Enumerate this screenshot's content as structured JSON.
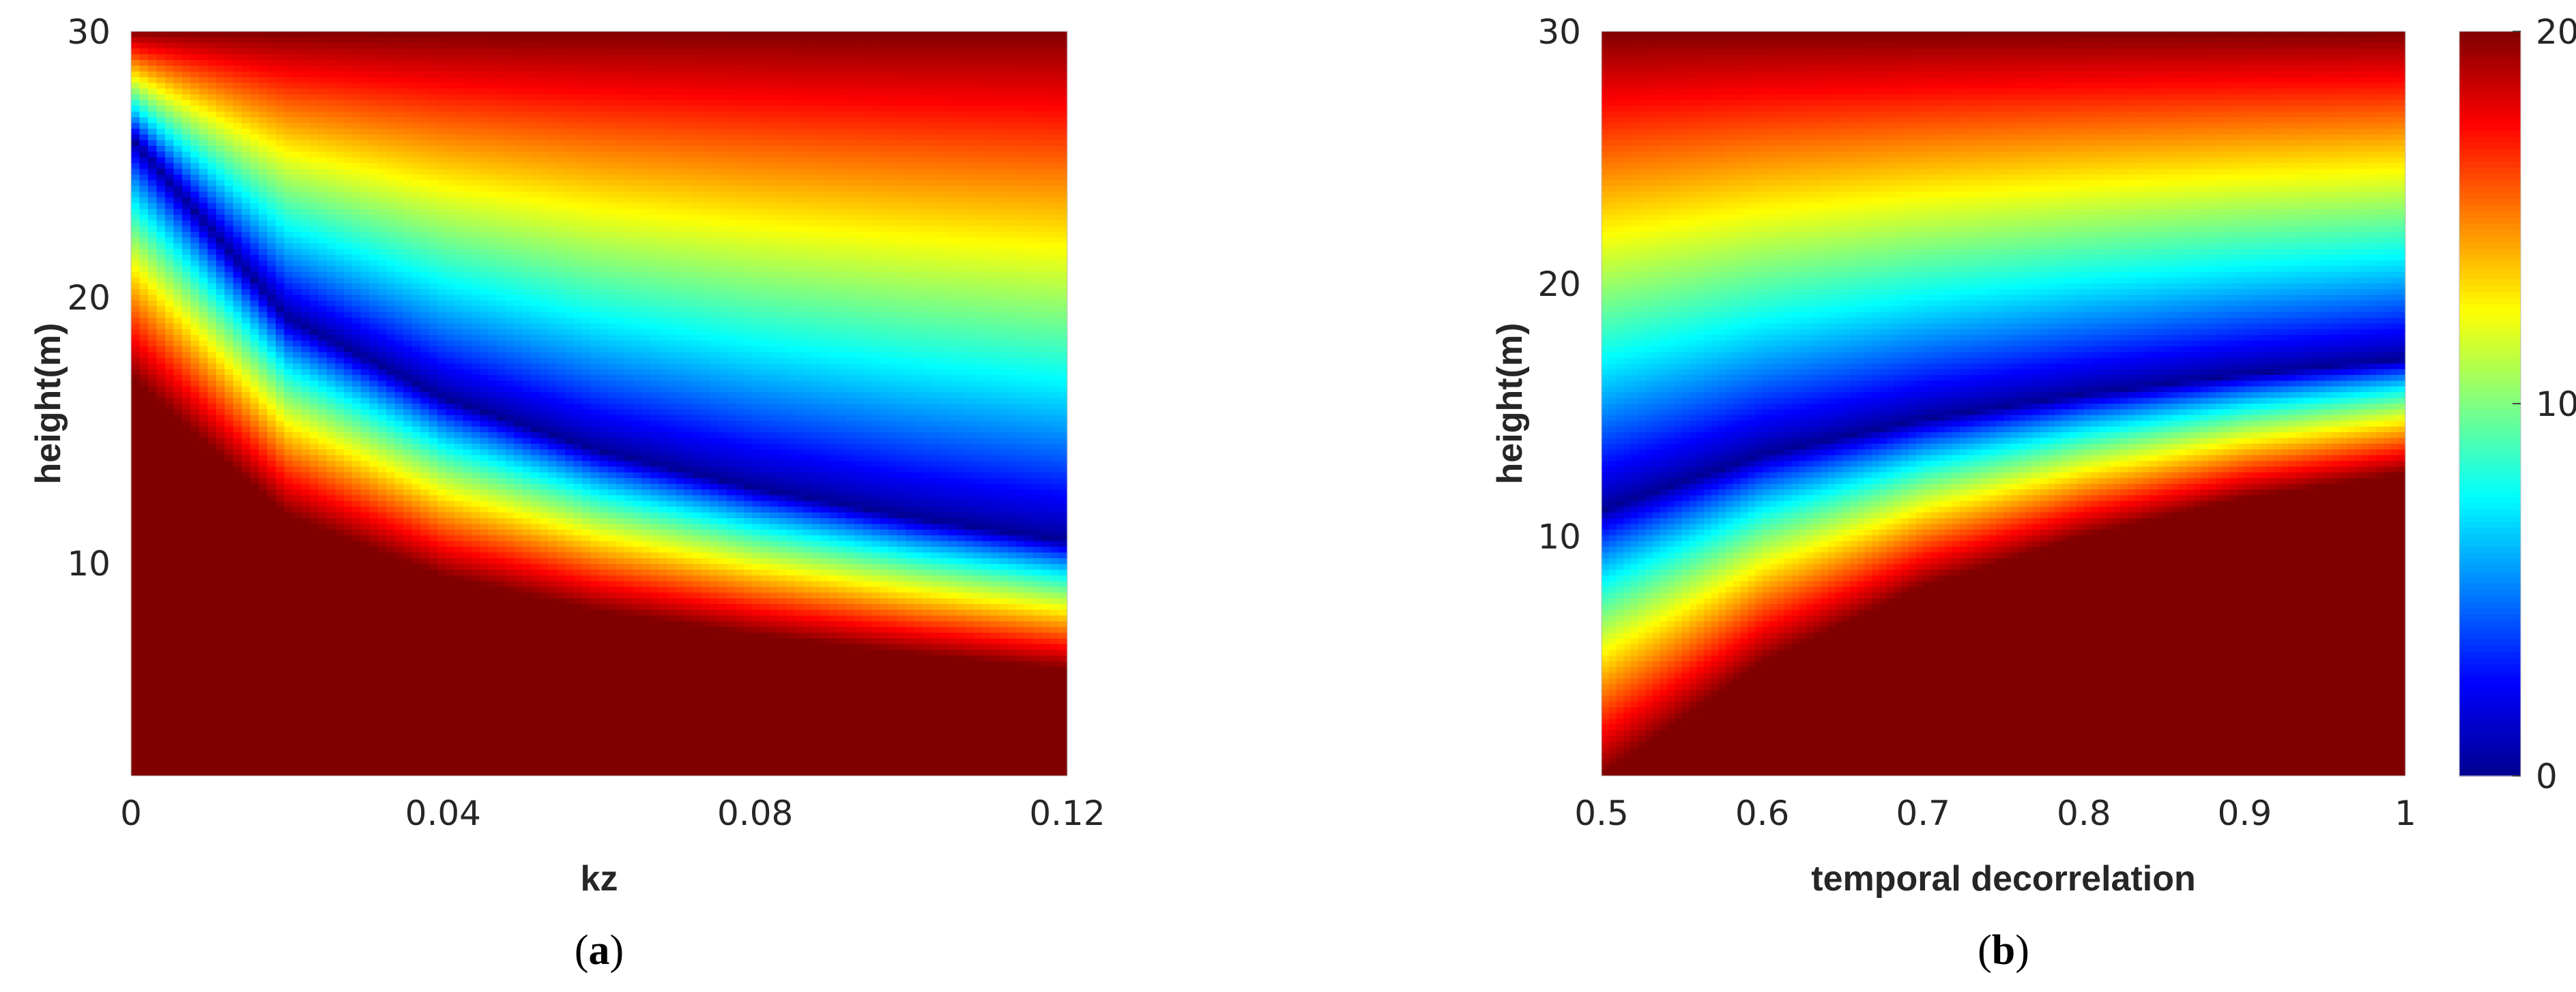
{
  "colormap": [
    "#00008f",
    "#0000ff",
    "#0080ff",
    "#00ffff",
    "#80ff80",
    "#ffff00",
    "#ff8000",
    "#ff0000",
    "#800000"
  ],
  "chart_data": [
    {
      "type": "heatmap",
      "panel": "a",
      "title": "",
      "xlabel": "kz",
      "ylabel": "height(m)",
      "xlim": [
        0,
        0.12
      ],
      "ylim": [
        2,
        30
      ],
      "xticks": [
        0,
        0.04,
        0.08,
        0.12
      ],
      "xtick_labels": [
        "0",
        "0.04",
        "0.08",
        "0.12"
      ],
      "yticks": [
        10,
        20,
        30
      ],
      "ytick_labels": [
        "10",
        "20",
        "30"
      ],
      "clim": [
        0,
        20
      ],
      "trough_height_vs_x": {
        "x": [
          0,
          0.02,
          0.04,
          0.06,
          0.08,
          0.1,
          0.12
        ],
        "y": [
          26,
          19.2,
          16.2,
          14.2,
          12.8,
          11.7,
          10.8
        ]
      },
      "saturation_edge_vs_x": {
        "x": [
          0,
          0.02,
          0.04,
          0.06,
          0.08,
          0.1,
          0.12
        ],
        "y": [
          17,
          11.8,
          9.5,
          8.2,
          7.3,
          6.6,
          6.0
        ]
      },
      "label_text": "a"
    },
    {
      "type": "heatmap",
      "panel": "b",
      "title": "",
      "xlabel": "temporal decorrelation",
      "ylabel": "height(m)",
      "xlim": [
        0.5,
        1
      ],
      "ylim": [
        0.5,
        30
      ],
      "xticks": [
        0.5,
        0.6,
        0.7,
        0.8,
        0.9,
        1
      ],
      "xtick_labels": [
        "0.5",
        "0.6",
        "0.7",
        "0.8",
        "0.9",
        "1"
      ],
      "yticks": [
        10,
        20,
        30
      ],
      "ytick_labels": [
        "10",
        "20",
        "30"
      ],
      "clim": [
        0,
        20
      ],
      "colorbar": {
        "ticks": [
          0,
          10,
          20
        ],
        "tick_labels": [
          "0",
          "10",
          "20"
        ]
      },
      "trough_height_vs_x": {
        "x": [
          0.5,
          0.6,
          0.7,
          0.8,
          0.9,
          1.0
        ],
        "y": [
          11,
          13.2,
          14.6,
          15.6,
          16.4,
          17
        ]
      },
      "saturation_edge_vs_x": {
        "x": [
          0.5,
          0.6,
          0.7,
          0.8,
          0.9,
          1.0
        ],
        "y": [
          0.5,
          5.0,
          8.0,
          10.0,
          11.5,
          12.5
        ]
      },
      "label_text": "b"
    }
  ]
}
